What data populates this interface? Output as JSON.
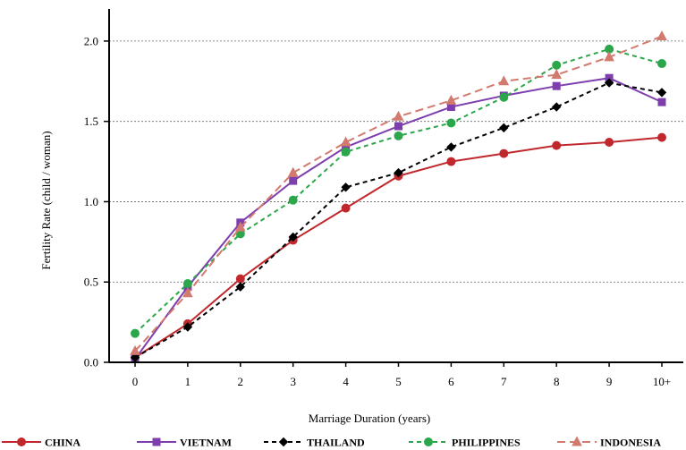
{
  "chart_data": {
    "type": "line",
    "title": "",
    "xlabel": "Marriage Duration (years)",
    "ylabel": "Fertility  Rate (child / woman)",
    "categories": [
      "0",
      "1",
      "2",
      "3",
      "4",
      "5",
      "6",
      "7",
      "8",
      "9",
      "10+"
    ],
    "y_ticks": [
      "0.0",
      "0.5",
      "1.0",
      "1.5",
      "2.0"
    ],
    "ylim": [
      0,
      2.2
    ],
    "grid": "horizontal dotted",
    "legend_position": "bottom",
    "series": [
      {
        "name": "CHINA",
        "color": "#c0282d",
        "dash": "solid",
        "marker": "circle",
        "values": [
          0.03,
          0.24,
          0.52,
          0.76,
          0.96,
          1.16,
          1.25,
          1.3,
          1.35,
          1.37,
          1.4
        ]
      },
      {
        "name": "VIETNAM",
        "color": "#7e3fae",
        "dash": "solid",
        "marker": "square",
        "values": [
          0.02,
          0.47,
          0.87,
          1.13,
          1.34,
          1.47,
          1.59,
          1.66,
          1.72,
          1.77,
          1.62
        ]
      },
      {
        "name": "THAILAND",
        "color": "#000000",
        "dash": "dashed",
        "marker": "diamond",
        "values": [
          0.03,
          0.22,
          0.47,
          0.78,
          1.09,
          1.18,
          1.34,
          1.46,
          1.59,
          1.74,
          1.68
        ]
      },
      {
        "name": "PHILIPPINES",
        "color": "#2ca64a",
        "dash": "dashed",
        "marker": "circle",
        "values": [
          0.18,
          0.49,
          0.8,
          1.01,
          1.31,
          1.41,
          1.49,
          1.65,
          1.85,
          1.95,
          1.86
        ]
      },
      {
        "name": "INDONESIA",
        "color": "#d27a6e",
        "dash": "longdash",
        "marker": "triangle",
        "values": [
          0.07,
          0.43,
          0.84,
          1.18,
          1.37,
          1.53,
          1.63,
          1.75,
          1.79,
          1.9,
          2.03
        ]
      }
    ]
  }
}
